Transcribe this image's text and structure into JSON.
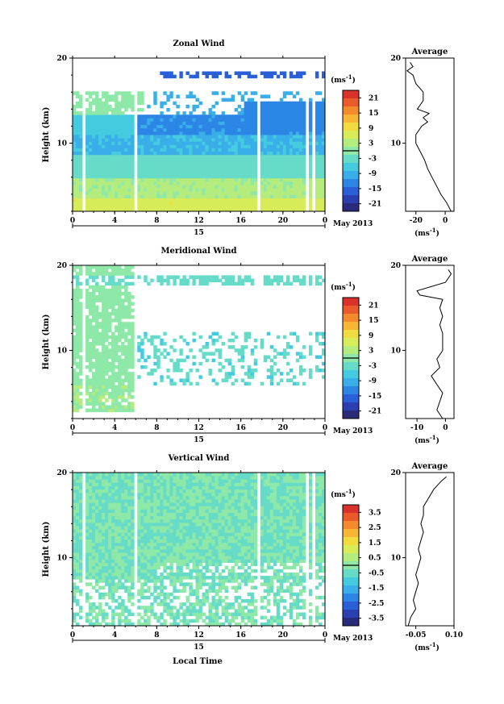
{
  "figure": {
    "xlabel": "Local Time",
    "date_label": "May 2013",
    "day_label": "15",
    "colorbar_unit": "(ms",
    "unit_exp": "-1",
    "unit_close": ")",
    "avg_unit": "(ms",
    "colors": [
      "#2a2a7a",
      "#2b3fb0",
      "#2a5fd8",
      "#2c86e6",
      "#3aaee8",
      "#45cbe0",
      "#66dcc8",
      "#8ee8a8",
      "#b5ec7e",
      "#d8ec5a",
      "#f0dc3e",
      "#f6b534",
      "#f48a2e",
      "#ea5a2a",
      "#d8322a"
    ]
  },
  "chart_data": [
    {
      "type": "heatmap",
      "title": "Zonal Wind",
      "ylabel": "Height (km)",
      "x_ticks": [
        "0",
        "4",
        "8",
        "12",
        "16",
        "20",
        "0"
      ],
      "y_ticks": [
        "10",
        "20"
      ],
      "xlim": [
        0,
        24
      ],
      "ylim": [
        2,
        20
      ],
      "colorbar": {
        "min": -24,
        "max": 24,
        "ticks": [
          "21",
          "15",
          "9",
          "3",
          "-3",
          "-9",
          "-15",
          "-21"
        ]
      },
      "average": {
        "title": "Average",
        "xlim": [
          -27,
          6
        ],
        "x_ticks": [
          "-20",
          "0"
        ],
        "heights": [
          2,
          3,
          4,
          5,
          6,
          7,
          8,
          9,
          10,
          11,
          12,
          12.5,
          13,
          13.5,
          14,
          15,
          16,
          17,
          18,
          18.5,
          19,
          19.5
        ],
        "values": [
          4,
          1,
          -3,
          -6,
          -9,
          -12,
          -14,
          -17,
          -20,
          -20,
          -16,
          -12,
          -15,
          -11,
          -19,
          -15,
          -15,
          -20,
          -22,
          -26,
          -22,
          -24
        ]
      }
    },
    {
      "type": "heatmap",
      "title": "Meridional Wind",
      "ylabel": "Height (km)",
      "x_ticks": [
        "0",
        "4",
        "8",
        "12",
        "16",
        "20",
        "0"
      ],
      "y_ticks": [
        "10",
        "20"
      ],
      "xlim": [
        0,
        24
      ],
      "ylim": [
        2,
        20
      ],
      "colorbar": {
        "min": -24,
        "max": 24,
        "ticks": [
          "21",
          "15",
          "9",
          "3",
          "-3",
          "-9",
          "-15",
          "-21"
        ]
      },
      "average": {
        "title": "Average",
        "xlim": [
          -14,
          3
        ],
        "x_ticks": [
          "-10",
          "0"
        ],
        "heights": [
          2,
          3,
          4,
          5,
          6,
          7,
          8,
          9,
          10,
          11,
          12,
          13,
          14,
          15,
          16,
          16.5,
          17,
          18,
          19,
          19.5
        ],
        "values": [
          -1,
          -3,
          -2,
          -1,
          -3,
          -5,
          -2,
          -3,
          -1,
          -1,
          -1,
          -2,
          -1,
          -2,
          -1,
          -9,
          -10,
          0,
          2,
          1
        ]
      }
    },
    {
      "type": "heatmap",
      "title": "Vertical Wind",
      "ylabel": "Height (km)",
      "x_ticks": [
        "0",
        "4",
        "8",
        "12",
        "16",
        "20",
        "0"
      ],
      "y_ticks": [
        "10",
        "20"
      ],
      "xlim": [
        0,
        24
      ],
      "ylim": [
        2,
        20
      ],
      "colorbar": {
        "min": -4,
        "max": 4,
        "ticks": [
          "3.5",
          "2.5",
          "1.5",
          "0.5",
          "-0.5",
          "-1.5",
          "-2.5",
          "-3.5"
        ]
      },
      "average": {
        "title": "Average",
        "xlim": [
          -0.09,
          0.1
        ],
        "x_ticks": [
          "-0.05",
          "0.10"
        ],
        "heights": [
          2,
          3,
          4,
          5,
          6,
          7,
          8,
          9,
          10,
          11,
          12,
          13,
          14,
          15,
          16,
          17,
          18,
          19,
          19.5
        ],
        "values": [
          -0.08,
          -0.07,
          -0.05,
          -0.06,
          -0.05,
          -0.04,
          -0.05,
          -0.04,
          -0.03,
          -0.04,
          -0.03,
          -0.02,
          -0.03,
          -0.02,
          -0.02,
          0.0,
          0.02,
          0.05,
          0.07
        ]
      }
    }
  ]
}
